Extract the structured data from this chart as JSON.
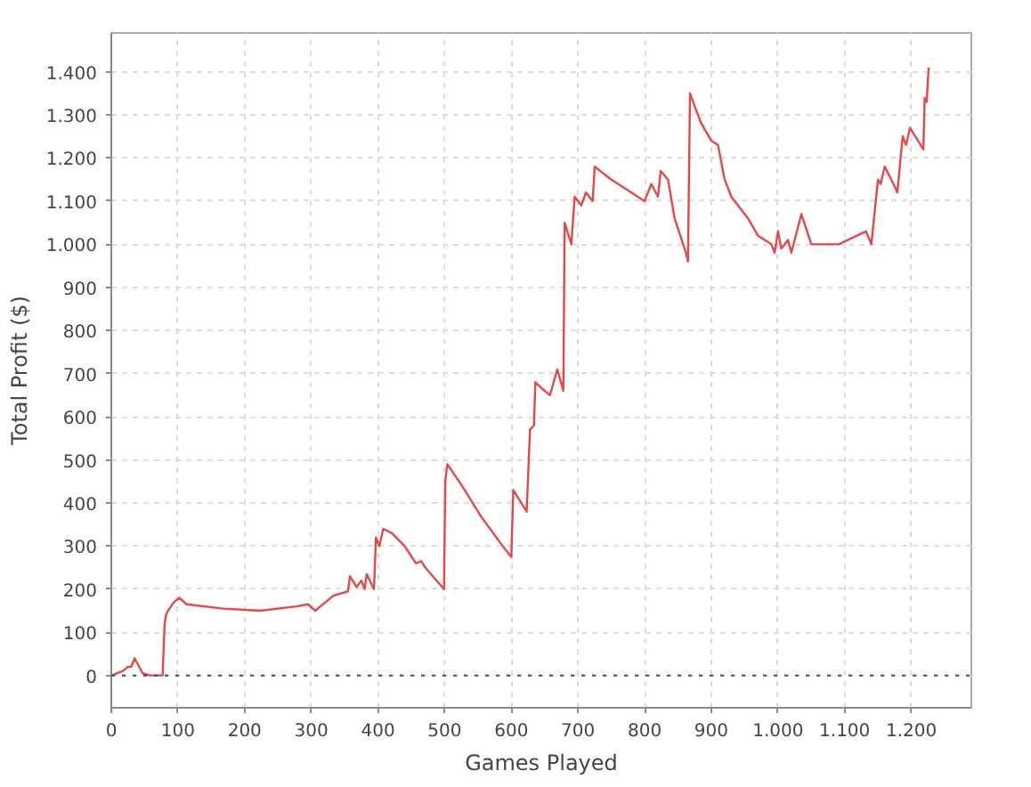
{
  "chart_data": {
    "type": "line",
    "xlabel": "Games Played",
    "ylabel": "Total Profit ($)",
    "x": [
      0,
      17,
      25,
      30,
      35,
      40,
      47,
      58,
      77,
      80,
      82,
      85,
      94,
      102,
      113,
      168,
      223,
      278,
      295,
      306,
      333,
      355,
      358,
      368,
      375,
      380,
      383,
      394,
      397,
      402,
      408,
      421,
      440,
      457,
      465,
      471,
      499,
      501,
      504,
      526,
      554,
      587,
      600,
      603,
      623,
      628,
      634,
      636,
      650,
      658,
      669,
      678,
      680,
      690,
      695,
      705,
      712,
      722,
      725,
      750,
      780,
      800,
      810,
      820,
      824,
      835,
      845,
      862,
      865,
      868,
      875,
      885,
      900,
      910,
      920,
      930,
      955,
      970,
      990,
      995,
      1000,
      1005,
      1015,
      1020,
      1035,
      1050,
      1070,
      1091,
      1132,
      1140,
      1150,
      1154,
      1160,
      1170,
      1179,
      1187,
      1192,
      1198,
      1210,
      1218,
      1220,
      1223,
      1226
    ],
    "series": [
      {
        "color": "#e24a4a",
        "values": [
          0,
          10,
          20,
          20,
          40,
          25,
          5,
          0,
          0,
          120,
          140,
          150,
          170,
          180,
          165,
          155,
          150,
          160,
          165,
          150,
          185,
          195,
          230,
          205,
          220,
          200,
          235,
          200,
          320,
          300,
          340,
          330,
          300,
          260,
          265,
          250,
          200,
          450,
          490,
          440,
          370,
          300,
          275,
          430,
          380,
          570,
          580,
          680,
          660,
          650,
          710,
          660,
          1050,
          1000,
          1110,
          1090,
          1120,
          1100,
          1180,
          1150,
          1120,
          1100,
          1140,
          1110,
          1170,
          1150,
          1060,
          980,
          960,
          1350,
          1320,
          1280,
          1240,
          1230,
          1150,
          1110,
          1060,
          1020,
          1000,
          980,
          1030,
          990,
          1010,
          980,
          1070,
          1000,
          1000,
          1000,
          1030,
          1000,
          1150,
          1140,
          1180,
          1150,
          1120,
          1250,
          1230,
          1270,
          1240,
          1220,
          1340,
          1330,
          1410
        ]
      }
    ],
    "xlim": [
      0,
      1290
    ],
    "ylim": [
      -75,
      1490
    ],
    "xticks": [
      0,
      100,
      200,
      300,
      400,
      500,
      600,
      700,
      800,
      900,
      {
        "value": 1000,
        "label": "1.000"
      },
      {
        "value": 1100,
        "label": "1.100"
      },
      {
        "value": 1200,
        "label": "1.200"
      }
    ],
    "yticks": [
      0,
      100,
      200,
      300,
      400,
      500,
      600,
      700,
      800,
      900,
      {
        "value": 1000,
        "label": "1.000"
      },
      {
        "value": 1100,
        "label": "1.100"
      },
      {
        "value": 1200,
        "label": "1.200"
      },
      {
        "value": 1300,
        "label": "1.300"
      },
      {
        "value": 1400,
        "label": "1.400"
      }
    ],
    "ref_lines": [
      {
        "axis": "y",
        "value": 0,
        "color": "#404080",
        "line_style": "dotted"
      }
    ],
    "grid": true
  }
}
